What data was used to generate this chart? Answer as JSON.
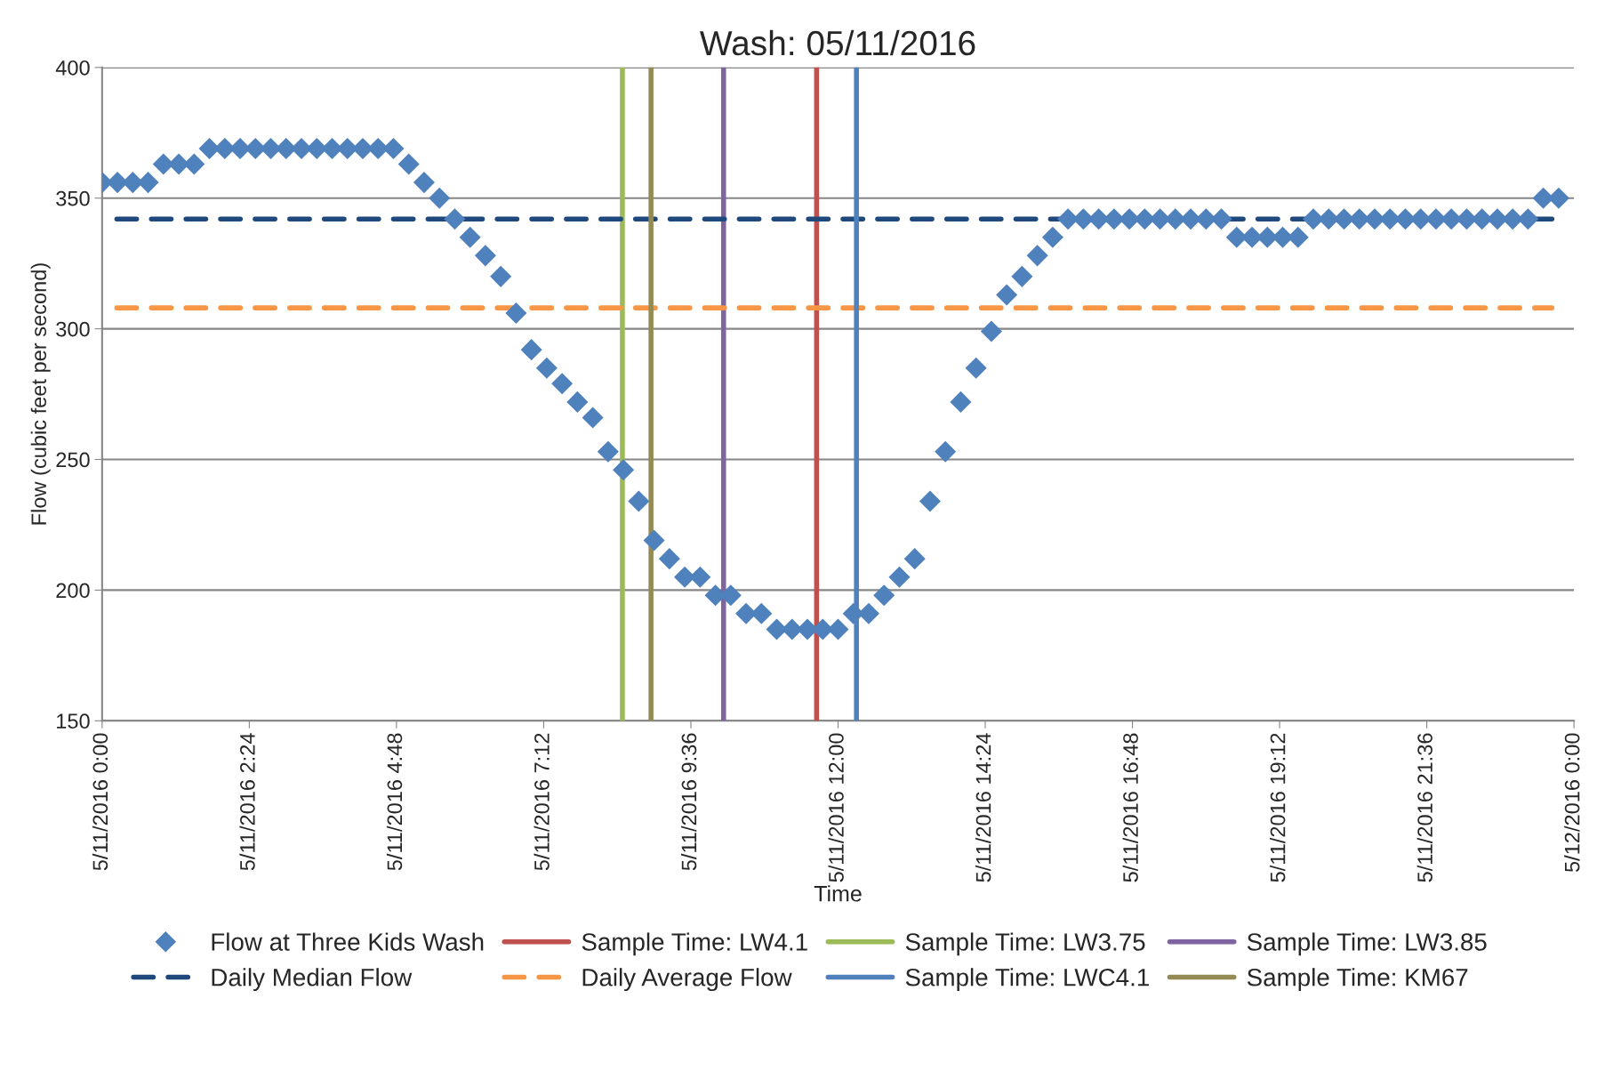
{
  "chart_data": {
    "type": "scatter",
    "title": "Wash: 05/11/2016",
    "xlabel": "Time",
    "ylabel": "Flow (cubic feet per second)",
    "x": [
      "2016-05-11T00:00",
      "2016-05-11T00:15",
      "2016-05-11T00:30",
      "2016-05-11T00:45",
      "2016-05-11T01:00",
      "2016-05-11T01:15",
      "2016-05-11T01:30",
      "2016-05-11T01:45",
      "2016-05-11T02:00",
      "2016-05-11T02:15",
      "2016-05-11T02:30",
      "2016-05-11T02:45",
      "2016-05-11T03:00",
      "2016-05-11T03:15",
      "2016-05-11T03:30",
      "2016-05-11T03:45",
      "2016-05-11T04:00",
      "2016-05-11T04:15",
      "2016-05-11T04:30",
      "2016-05-11T04:45",
      "2016-05-11T05:00",
      "2016-05-11T05:15",
      "2016-05-11T05:30",
      "2016-05-11T05:45",
      "2016-05-11T06:00",
      "2016-05-11T06:15",
      "2016-05-11T06:30",
      "2016-05-11T06:45",
      "2016-05-11T07:00",
      "2016-05-11T07:15",
      "2016-05-11T07:30",
      "2016-05-11T07:45",
      "2016-05-11T08:00",
      "2016-05-11T08:15",
      "2016-05-11T08:30",
      "2016-05-11T08:45",
      "2016-05-11T09:00",
      "2016-05-11T09:15",
      "2016-05-11T09:30",
      "2016-05-11T09:45",
      "2016-05-11T10:00",
      "2016-05-11T10:15",
      "2016-05-11T10:30",
      "2016-05-11T10:45",
      "2016-05-11T11:00",
      "2016-05-11T11:15",
      "2016-05-11T11:30",
      "2016-05-11T11:45",
      "2016-05-11T12:00",
      "2016-05-11T12:15",
      "2016-05-11T12:30",
      "2016-05-11T12:45",
      "2016-05-11T13:00",
      "2016-05-11T13:15",
      "2016-05-11T13:30",
      "2016-05-11T13:45",
      "2016-05-11T14:00",
      "2016-05-11T14:15",
      "2016-05-11T14:30",
      "2016-05-11T14:45",
      "2016-05-11T15:00",
      "2016-05-11T15:15",
      "2016-05-11T15:30",
      "2016-05-11T15:45",
      "2016-05-11T16:00",
      "2016-05-11T16:15",
      "2016-05-11T16:30",
      "2016-05-11T16:45",
      "2016-05-11T17:00",
      "2016-05-11T17:15",
      "2016-05-11T17:30",
      "2016-05-11T17:45",
      "2016-05-11T18:00",
      "2016-05-11T18:15",
      "2016-05-11T18:30",
      "2016-05-11T18:45",
      "2016-05-11T19:00",
      "2016-05-11T19:15",
      "2016-05-11T19:30",
      "2016-05-11T19:45",
      "2016-05-11T20:00",
      "2016-05-11T20:15",
      "2016-05-11T20:30",
      "2016-05-11T20:45",
      "2016-05-11T21:00",
      "2016-05-11T21:15",
      "2016-05-11T21:30",
      "2016-05-11T21:45",
      "2016-05-11T22:00",
      "2016-05-11T22:15",
      "2016-05-11T22:30",
      "2016-05-11T22:45",
      "2016-05-11T23:00",
      "2016-05-11T23:15",
      "2016-05-11T23:30",
      "2016-05-11T23:45"
    ],
    "series": [
      {
        "name": "Flow at Three Kids Wash",
        "color": "#4f81bd",
        "values": [
          356,
          356,
          356,
          356,
          363,
          363,
          363,
          369,
          369,
          369,
          369,
          369,
          369,
          369,
          369,
          369,
          369,
          369,
          369,
          369,
          363,
          356,
          350,
          342,
          335,
          328,
          320,
          306,
          292,
          285,
          279,
          272,
          266,
          253,
          246,
          234,
          219,
          212,
          205,
          205,
          198,
          198,
          191,
          191,
          185,
          185,
          185,
          185,
          185,
          191,
          191,
          198,
          205,
          212,
          234,
          253,
          272,
          285,
          299,
          313,
          320,
          328,
          335,
          342,
          342,
          342,
          342,
          342,
          342,
          342,
          342,
          342,
          342,
          342,
          335,
          335,
          335,
          335,
          335,
          342,
          342,
          342,
          342,
          342,
          342,
          342,
          342,
          342,
          342,
          342,
          342,
          342,
          342,
          342,
          350,
          350
        ]
      }
    ],
    "marker": "diamond",
    "ref_lines": [
      {
        "axis": "x",
        "value": "2016-05-11T11:39",
        "label": "Sample Time: LW4.1",
        "color": "#c0504d",
        "line_style": "solid"
      },
      {
        "axis": "x",
        "value": "2016-05-11T08:29",
        "label": "Sample Time: LW3.75",
        "color": "#9bbb59",
        "line_style": "solid"
      },
      {
        "axis": "x",
        "value": "2016-05-11T10:08",
        "label": "Sample Time: LW3.85",
        "color": "#8064a2",
        "line_style": "solid"
      },
      {
        "axis": "y",
        "value": 342,
        "label": "Daily Median Flow",
        "color": "#1f497d",
        "line_style": "dashed"
      },
      {
        "axis": "y",
        "value": 308,
        "label": "Daily Average Flow",
        "color": "#f79646",
        "line_style": "dashed"
      },
      {
        "axis": "x",
        "value": "2016-05-11T12:18",
        "label": "Sample Time: LWC4.1",
        "color": "#4f81bd",
        "line_style": "solid"
      },
      {
        "axis": "x",
        "value": "2016-05-11T08:57",
        "label": "Sample Time: KM67",
        "color": "#948a54",
        "line_style": "solid"
      }
    ],
    "xlim": [
      "2016-05-11T00:00",
      "2016-05-12T00:00"
    ],
    "xticks": [
      {
        "value": "2016-05-11T00:00",
        "label": "5/11/2016 0:00"
      },
      {
        "value": "2016-05-11T02:24",
        "label": "5/11/2016 2:24"
      },
      {
        "value": "2016-05-11T04:48",
        "label": "5/11/2016 4:48"
      },
      {
        "value": "2016-05-11T07:12",
        "label": "5/11/2016 7:12"
      },
      {
        "value": "2016-05-11T09:36",
        "label": "5/11/2016 9:36"
      },
      {
        "value": "2016-05-11T12:00",
        "label": "5/11/2016 12:00"
      },
      {
        "value": "2016-05-11T14:24",
        "label": "5/11/2016 14:24"
      },
      {
        "value": "2016-05-11T16:48",
        "label": "5/11/2016 16:48"
      },
      {
        "value": "2016-05-11T19:12",
        "label": "5/11/2016 19:12"
      },
      {
        "value": "2016-05-11T21:36",
        "label": "5/11/2016 21:36"
      },
      {
        "value": "2016-05-12T00:00",
        "label": "5/12/2016 0:00"
      }
    ],
    "ylim": [
      150,
      400
    ],
    "yticks": [
      150,
      200,
      250,
      300,
      350,
      400
    ],
    "grid": "y",
    "legend": "bottom"
  }
}
